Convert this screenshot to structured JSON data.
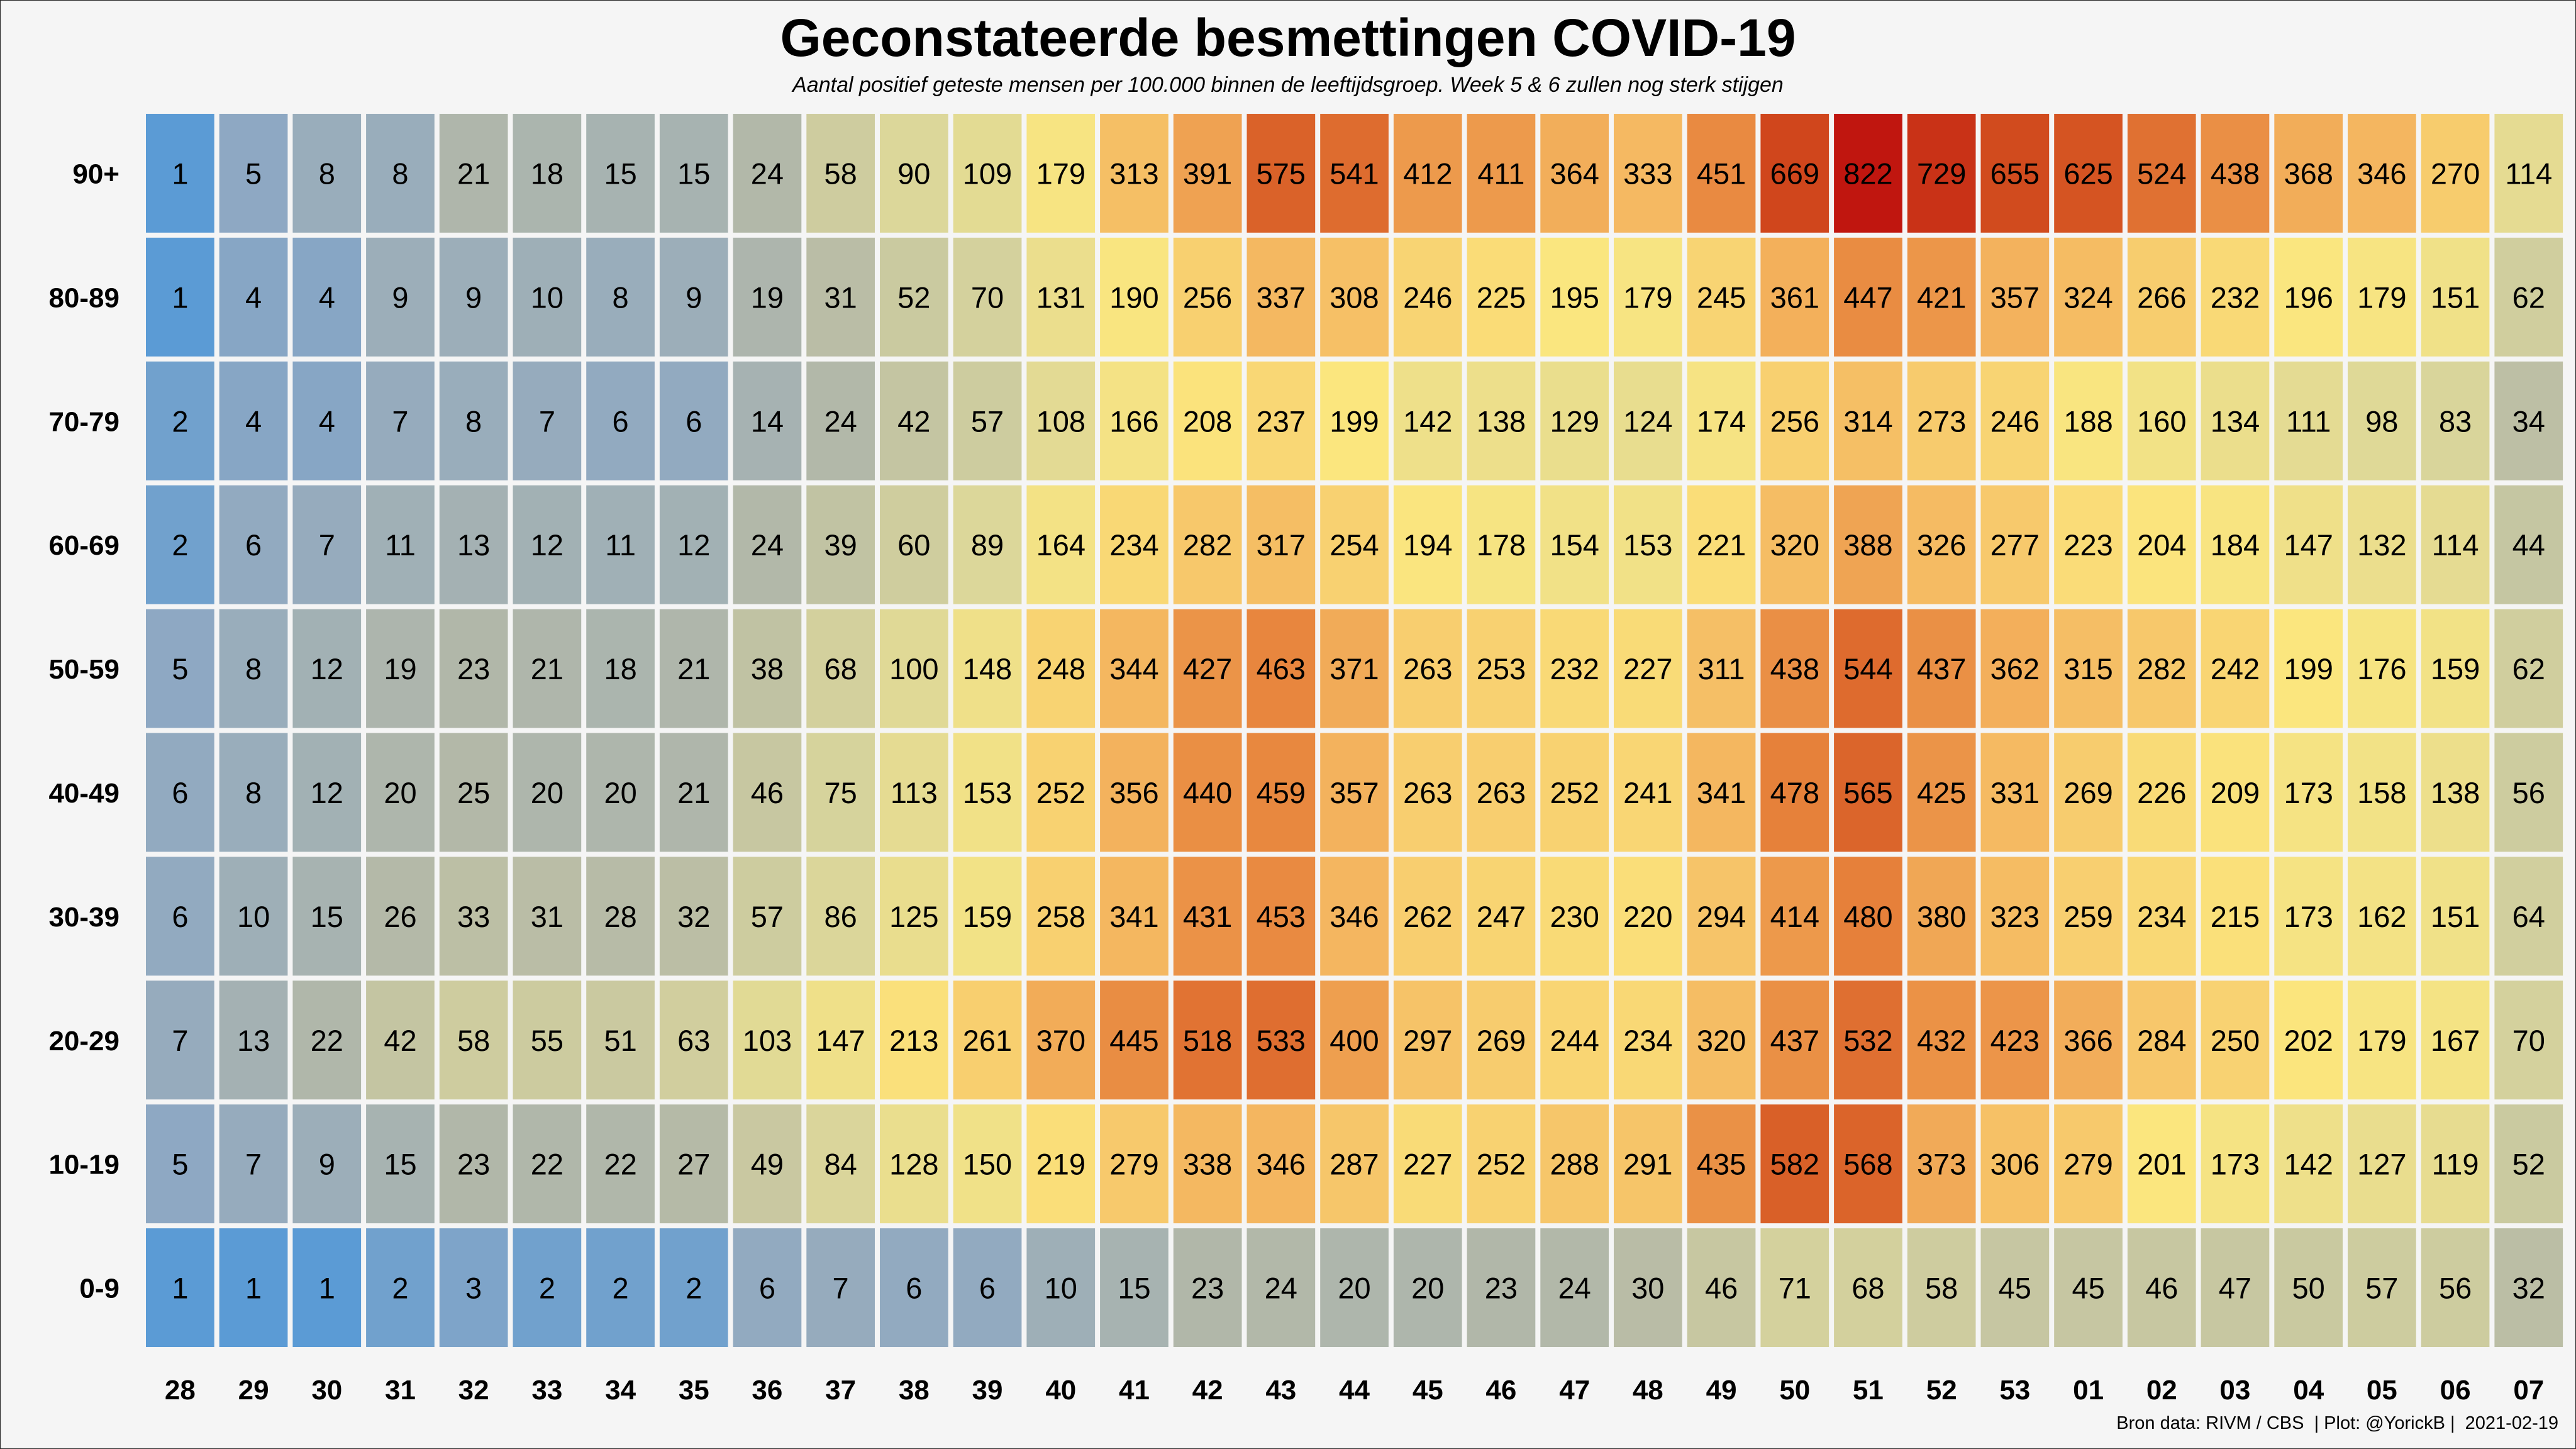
{
  "chart_data": {
    "type": "heatmap",
    "title": "Geconstateerde besmettingen COVID-19",
    "subtitle": "Aantal positief geteste mensen per 100.000 binnen de leeftijdsgroep. Week 5 & 6 zullen nog sterk stijgen",
    "footer": "Bron data: RIVM / CBS  | Plot: @YorickB |  2021-02-19",
    "xlabel": "",
    "ylabel": "",
    "x_categories": [
      "28",
      "29",
      "30",
      "31",
      "32",
      "33",
      "34",
      "35",
      "36",
      "37",
      "38",
      "39",
      "40",
      "41",
      "42",
      "43",
      "44",
      "45",
      "46",
      "47",
      "48",
      "49",
      "50",
      "51",
      "52",
      "53",
      "01",
      "02",
      "03",
      "04",
      "05",
      "06",
      "07"
    ],
    "y_categories": [
      "90+",
      "80-89",
      "70-79",
      "60-69",
      "50-59",
      "40-49",
      "30-39",
      "20-29",
      "10-19",
      "0-9"
    ],
    "values": [
      [
        1,
        5,
        8,
        8,
        21,
        18,
        15,
        15,
        24,
        58,
        90,
        109,
        179,
        313,
        391,
        575,
        541,
        412,
        411,
        364,
        333,
        451,
        669,
        822,
        729,
        655,
        625,
        524,
        438,
        368,
        346,
        270,
        114
      ],
      [
        1,
        4,
        4,
        9,
        9,
        10,
        8,
        9,
        19,
        31,
        52,
        70,
        131,
        190,
        256,
        337,
        308,
        246,
        225,
        195,
        179,
        245,
        361,
        447,
        421,
        357,
        324,
        266,
        232,
        196,
        179,
        151,
        62
      ],
      [
        2,
        4,
        4,
        7,
        8,
        7,
        6,
        6,
        14,
        24,
        42,
        57,
        108,
        166,
        208,
        237,
        199,
        142,
        138,
        129,
        124,
        174,
        256,
        314,
        273,
        246,
        188,
        160,
        134,
        111,
        98,
        83,
        34
      ],
      [
        2,
        6,
        7,
        11,
        13,
        12,
        11,
        12,
        24,
        39,
        60,
        89,
        164,
        234,
        282,
        317,
        254,
        194,
        178,
        154,
        153,
        221,
        320,
        388,
        326,
        277,
        223,
        204,
        184,
        147,
        132,
        114,
        44
      ],
      [
        5,
        8,
        12,
        19,
        23,
        21,
        18,
        21,
        38,
        68,
        100,
        148,
        248,
        344,
        427,
        463,
        371,
        263,
        253,
        232,
        227,
        311,
        438,
        544,
        437,
        362,
        315,
        282,
        242,
        199,
        176,
        159,
        62
      ],
      [
        6,
        8,
        12,
        20,
        25,
        20,
        20,
        21,
        46,
        75,
        113,
        153,
        252,
        356,
        440,
        459,
        357,
        263,
        263,
        252,
        241,
        341,
        478,
        565,
        425,
        331,
        269,
        226,
        209,
        173,
        158,
        138,
        56
      ],
      [
        6,
        10,
        15,
        26,
        33,
        31,
        28,
        32,
        57,
        86,
        125,
        159,
        258,
        341,
        431,
        453,
        346,
        262,
        247,
        230,
        220,
        294,
        414,
        480,
        380,
        323,
        259,
        234,
        215,
        173,
        162,
        151,
        64
      ],
      [
        7,
        13,
        22,
        42,
        58,
        55,
        51,
        63,
        103,
        147,
        213,
        261,
        370,
        445,
        518,
        533,
        400,
        297,
        269,
        244,
        234,
        320,
        437,
        532,
        432,
        423,
        366,
        284,
        250,
        202,
        179,
        167,
        70
      ],
      [
        5,
        7,
        9,
        15,
        23,
        22,
        22,
        27,
        49,
        84,
        128,
        150,
        219,
        279,
        338,
        346,
        287,
        227,
        252,
        288,
        291,
        435,
        582,
        568,
        373,
        306,
        279,
        201,
        173,
        142,
        127,
        119,
        52
      ],
      [
        1,
        1,
        1,
        2,
        3,
        2,
        2,
        2,
        6,
        7,
        6,
        6,
        10,
        15,
        23,
        24,
        20,
        20,
        23,
        24,
        30,
        46,
        71,
        68,
        58,
        45,
        45,
        46,
        47,
        50,
        57,
        56,
        32
      ]
    ],
    "color_scale": [
      "#5b9bd5",
      "#8ea8c3",
      "#b3b8a8",
      "#dcd79a",
      "#fbe67e",
      "#f4b55f",
      "#e6803a",
      "#d24d1e",
      "#c0160f"
    ],
    "color_stops": [
      1,
      5,
      25,
      90,
      200,
      350,
      480,
      650,
      822
    ]
  }
}
